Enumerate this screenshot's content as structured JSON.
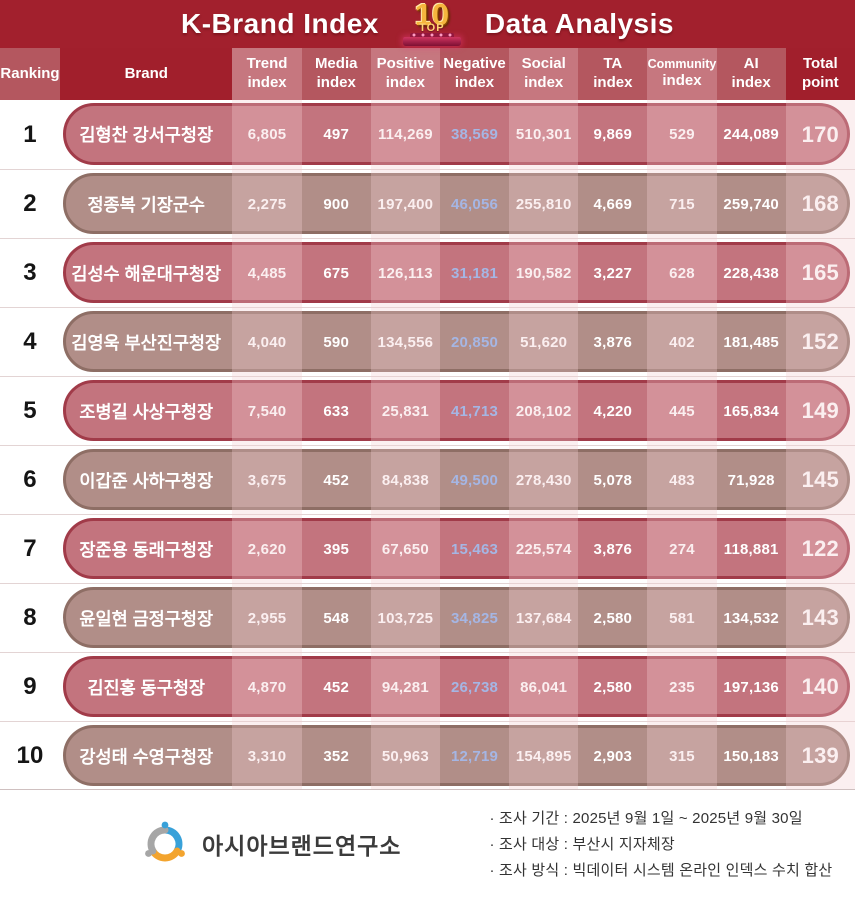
{
  "title": {
    "left": "K-Brand Index",
    "right": "Data Analysis",
    "badge_number": "10",
    "badge_label": "TOP"
  },
  "table": {
    "columns": [
      {
        "key": "ranking",
        "label": "Ranking",
        "tone": "mid"
      },
      {
        "key": "brand",
        "label": "Brand",
        "tone": "dark"
      },
      {
        "key": "trend",
        "label": "Trend",
        "sub": "index",
        "tone": "light"
      },
      {
        "key": "media",
        "label": "Media",
        "sub": "index",
        "tone": "mid"
      },
      {
        "key": "positive",
        "label": "Positive",
        "sub": "index",
        "tone": "light"
      },
      {
        "key": "negative",
        "label": "Negative",
        "sub": "index",
        "tone": "mid"
      },
      {
        "key": "social",
        "label": "Social",
        "sub": "index",
        "tone": "light"
      },
      {
        "key": "ta",
        "label": "TA",
        "sub": "index",
        "tone": "mid"
      },
      {
        "key": "community",
        "label": "Community",
        "sub": "index",
        "tone": "light",
        "small": true
      },
      {
        "key": "ai",
        "label": "AI",
        "sub": "index",
        "tone": "mid"
      },
      {
        "key": "total",
        "label": "Total",
        "sub": "point",
        "tone": "dark"
      }
    ],
    "rows": [
      {
        "rank": "1",
        "brand": "김형찬 강서구청장",
        "trend": "6,805",
        "media": "497",
        "positive": "114,269",
        "negative": "38,569",
        "social": "510,301",
        "ta": "9,869",
        "community": "529",
        "ai": "244,089",
        "total": "170"
      },
      {
        "rank": "2",
        "brand": "정종복 기장군수",
        "trend": "2,275",
        "media": "900",
        "positive": "197,400",
        "negative": "46,056",
        "social": "255,810",
        "ta": "4,669",
        "community": "715",
        "ai": "259,740",
        "total": "168"
      },
      {
        "rank": "3",
        "brand": "김성수 해운대구청장",
        "trend": "4,485",
        "media": "675",
        "positive": "126,113",
        "negative": "31,181",
        "social": "190,582",
        "ta": "3,227",
        "community": "628",
        "ai": "228,438",
        "total": "165"
      },
      {
        "rank": "4",
        "brand": "김영욱 부산진구청장",
        "trend": "4,040",
        "media": "590",
        "positive": "134,556",
        "negative": "20,850",
        "social": "51,620",
        "ta": "3,876",
        "community": "402",
        "ai": "181,485",
        "total": "152"
      },
      {
        "rank": "5",
        "brand": "조병길 사상구청장",
        "trend": "7,540",
        "media": "633",
        "positive": "25,831",
        "negative": "41,713",
        "social": "208,102",
        "ta": "4,220",
        "community": "445",
        "ai": "165,834",
        "total": "149"
      },
      {
        "rank": "6",
        "brand": "이갑준 사하구청장",
        "trend": "3,675",
        "media": "452",
        "positive": "84,838",
        "negative": "49,500",
        "social": "278,430",
        "ta": "5,078",
        "community": "483",
        "ai": "71,928",
        "total": "145"
      },
      {
        "rank": "7",
        "brand": "장준용 동래구청장",
        "trend": "2,620",
        "media": "395",
        "positive": "67,650",
        "negative": "15,463",
        "social": "225,574",
        "ta": "3,876",
        "community": "274",
        "ai": "118,881",
        "total": "122"
      },
      {
        "rank": "8",
        "brand": "윤일현 금정구청장",
        "trend": "2,955",
        "media": "548",
        "positive": "103,725",
        "negative": "34,825",
        "social": "137,684",
        "ta": "2,580",
        "community": "581",
        "ai": "134,532",
        "total": "143"
      },
      {
        "rank": "9",
        "brand": "김진홍 동구청장",
        "trend": "4,870",
        "media": "452",
        "positive": "94,281",
        "negative": "26,738",
        "social": "86,041",
        "ta": "2,580",
        "community": "235",
        "ai": "197,136",
        "total": "140"
      },
      {
        "rank": "10",
        "brand": "강성태 수영구청장",
        "trend": "3,310",
        "media": "352",
        "positive": "50,963",
        "negative": "12,719",
        "social": "154,895",
        "ta": "2,903",
        "community": "315",
        "ai": "150,183",
        "total": "139"
      }
    ]
  },
  "footer": {
    "org": "아시아브랜드연구소",
    "notes": [
      "· 조사 기간 : 2025년 9월 1일 ~ 2025년 9월 30일",
      "· 조사 대상 : 부산시 지자체장",
      "· 조사 방식 : 빅데이터 시스템 온라인 인덱스 수치 합산"
    ]
  },
  "colors": {
    "title_bar": "#a2202d",
    "header_dark": "#a11f2c",
    "header_mid": "#b4575f",
    "header_light": "#c6777f",
    "pill_odd_fill": "#c3747e",
    "pill_odd_border": "#a13b49",
    "pill_even_fill": "#b18e88",
    "pill_even_border": "#8e6e65",
    "negative_value": "#a5b6e4",
    "badge_gold": "#f5b53e",
    "logo_blue": "#38a1d9",
    "logo_orange": "#f3a42e",
    "logo_gray": "#a6a6a6"
  },
  "chart_data": {
    "type": "table",
    "title": "K-Brand Index TOP 10 Data Analysis",
    "columns": [
      "Ranking",
      "Brand",
      "Trend index",
      "Media index",
      "Positive index",
      "Negative index",
      "Social index",
      "TA index",
      "Community index",
      "AI index",
      "Total point"
    ],
    "rows": [
      [
        1,
        "김형찬 강서구청장",
        6805,
        497,
        114269,
        38569,
        510301,
        9869,
        529,
        244089,
        170
      ],
      [
        2,
        "정종복 기장군수",
        2275,
        900,
        197400,
        46056,
        255810,
        4669,
        715,
        259740,
        168
      ],
      [
        3,
        "김성수 해운대구청장",
        4485,
        675,
        126113,
        31181,
        190582,
        3227,
        628,
        228438,
        165
      ],
      [
        4,
        "김영욱 부산진구청장",
        4040,
        590,
        134556,
        20850,
        51620,
        3876,
        402,
        181485,
        152
      ],
      [
        5,
        "조병길 사상구청장",
        7540,
        633,
        25831,
        41713,
        208102,
        4220,
        445,
        165834,
        149
      ],
      [
        6,
        "이갑준 사하구청장",
        3675,
        452,
        84838,
        49500,
        278430,
        5078,
        483,
        71928,
        145
      ],
      [
        7,
        "장준용 동래구청장",
        2620,
        395,
        67650,
        15463,
        225574,
        3876,
        274,
        118881,
        122
      ],
      [
        8,
        "윤일현 금정구청장",
        2955,
        548,
        103725,
        34825,
        137684,
        2580,
        581,
        134532,
        143
      ],
      [
        9,
        "김진홍 동구청장",
        4870,
        452,
        94281,
        26738,
        86041,
        2580,
        235,
        197136,
        140
      ],
      [
        10,
        "강성태 수영구청장",
        3310,
        352,
        50963,
        12719,
        154895,
        2903,
        315,
        150183,
        139
      ]
    ],
    "note": "Negative index values rendered in light blue; survey period 2025-09-01 to 2025-09-30; subjects: Busan local government heads"
  }
}
